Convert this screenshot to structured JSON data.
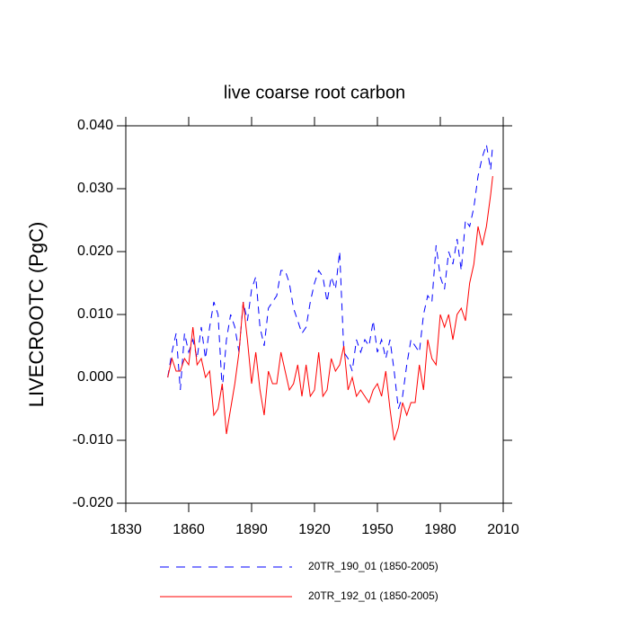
{
  "chart_data": {
    "type": "line",
    "title": "live coarse root carbon",
    "y_label": "LIVECROOTC  (PgC)",
    "x": [
      1850,
      1852,
      1854,
      1856,
      1858,
      1860,
      1862,
      1864,
      1866,
      1868,
      1870,
      1872,
      1874,
      1876,
      1878,
      1880,
      1882,
      1884,
      1886,
      1888,
      1890,
      1892,
      1894,
      1896,
      1898,
      1900,
      1902,
      1904,
      1906,
      1908,
      1910,
      1912,
      1914,
      1916,
      1918,
      1920,
      1922,
      1924,
      1926,
      1928,
      1930,
      1932,
      1934,
      1936,
      1938,
      1940,
      1942,
      1944,
      1946,
      1948,
      1950,
      1952,
      1954,
      1956,
      1958,
      1960,
      1962,
      1964,
      1966,
      1968,
      1970,
      1972,
      1974,
      1976,
      1978,
      1980,
      1982,
      1984,
      1986,
      1988,
      1990,
      1992,
      1994,
      1996,
      1998,
      2000,
      2002,
      2004,
      2005
    ],
    "series": [
      {
        "name": "20TR_190_01 (1850-2005)",
        "color": "#0000ff",
        "dashed": true,
        "values": [
          0,
          0.004,
          0.007,
          -0.002,
          0.007,
          0.004,
          0.006,
          0.003,
          0.008,
          0.003,
          0.008,
          0.012,
          0.01,
          -0.002,
          0.006,
          0.01,
          0.008,
          0.004,
          0.012,
          0.009,
          0.014,
          0.016,
          0.008,
          0.005,
          0.011,
          0.012,
          0.013,
          0.017,
          0.017,
          0.015,
          0.011,
          0.009,
          0.007,
          0.008,
          0.012,
          0.015,
          0.017,
          0.016,
          0.012,
          0.016,
          0.014,
          0.02,
          0.004,
          0.003,
          0.001,
          0.006,
          0.004,
          0.006,
          0.005,
          0.009,
          0.004,
          0.006,
          0.003,
          0.006,
          0.001,
          -0.005,
          -0.003,
          0.002,
          0.006,
          0.005,
          0.004,
          0.01,
          0.013,
          0.012,
          0.021,
          0.016,
          0.014,
          0.02,
          0.018,
          0.022,
          0.017,
          0.025,
          0.024,
          0.027,
          0.032,
          0.035,
          0.037,
          0.033,
          0.037
        ]
      },
      {
        "name": "20TR_192_01 (1850-2005)",
        "color": "#ff0000",
        "dashed": false,
        "values": [
          0,
          0.003,
          0.001,
          0.001,
          0.003,
          0.002,
          0.008,
          0.002,
          0.003,
          0,
          0.001,
          -0.006,
          -0.005,
          -0.001,
          -0.009,
          -0.005,
          -0.001,
          0.004,
          0.012,
          0.006,
          -0.001,
          0.004,
          -0.002,
          -0.006,
          0.001,
          -0.001,
          -0.001,
          0.004,
          0.001,
          -0.002,
          -0.001,
          0.002,
          -0.003,
          0.002,
          -0.003,
          -0.002,
          0.004,
          -0.003,
          -0.002,
          0.003,
          0.001,
          0.002,
          0.005,
          -0.002,
          0,
          -0.003,
          -0.002,
          -0.003,
          -0.004,
          -0.002,
          -0.001,
          -0.003,
          0.001,
          -0.005,
          -0.01,
          -0.008,
          -0.004,
          -0.006,
          -0.004,
          -0.004,
          0.002,
          -0.002,
          0.006,
          0.003,
          0.002,
          0.01,
          0.008,
          0.01,
          0.006,
          0.01,
          0.011,
          0.009,
          0.015,
          0.018,
          0.024,
          0.021,
          0.024,
          0.029,
          0.032
        ]
      }
    ],
    "xlim": [
      1830,
      2010
    ],
    "xticks": [
      1830,
      1860,
      1890,
      1920,
      1950,
      1980,
      2010
    ],
    "ylim": [
      -0.02,
      0.04
    ],
    "yticks": [
      {
        "value": -0.02,
        "label": "-0.020"
      },
      {
        "value": -0.01,
        "label": "-0.010"
      },
      {
        "value": 0,
        "label": "0.000"
      },
      {
        "value": 0.01,
        "label": "0.010"
      },
      {
        "value": 0.02,
        "label": "0.020"
      },
      {
        "value": 0.03,
        "label": "0.030"
      },
      {
        "value": 0.04,
        "label": "0.040"
      }
    ]
  }
}
